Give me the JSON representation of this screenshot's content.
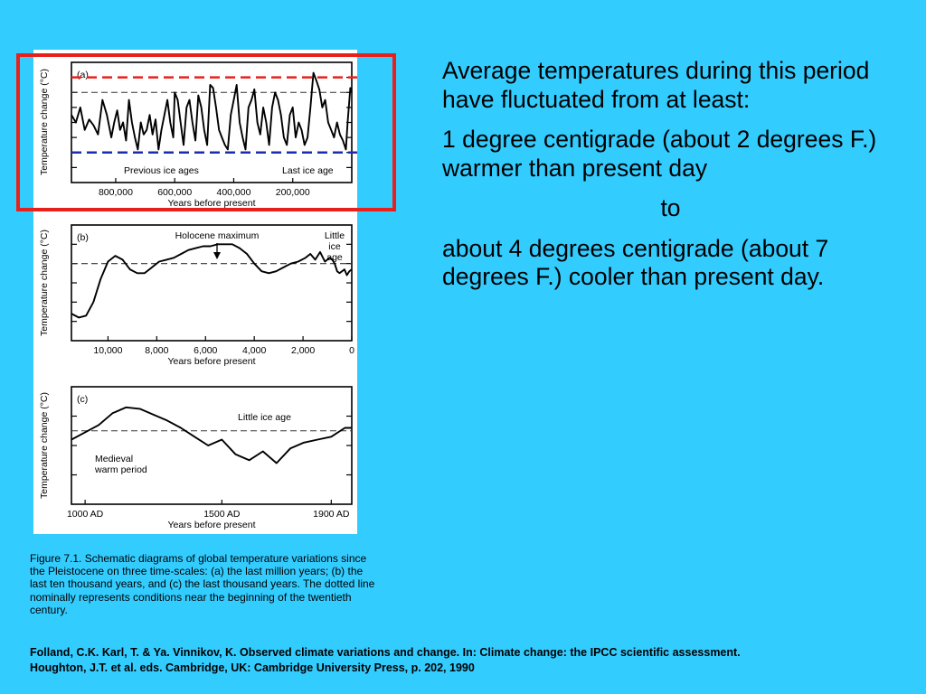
{
  "bullets": {
    "intro": "Average temperatures during this period have fluctuated from at least:",
    "warmer": "1 degree centigrade (about 2 degrees F.) warmer than present day",
    "to": "to",
    "cooler": "about 4 degrees centigrade (about 7 degrees F.) cooler than present day."
  },
  "caption": "Figure 7.1. Schematic diagrams of global temperature variations since the Pleistocene on three time-scales: (a) the last million years; (b) the last ten thousand years, and (c) the last thousand years. The dotted line nominally represents conditions near the beginning of the twentieth century.",
  "citation": {
    "line1": "Folland, C.K. Karl, T. & Ya. Vinnikov, K. Observed climate variations and change. In: Climate change: the IPCC scientific assessment.",
    "line2": "Houghton, J.T. et al. eds. Cambridge, UK: Cambridge University Press, p. 202, 1990"
  },
  "colors": {
    "background": "#33ccff",
    "highlight_box": "#e8201c",
    "warm_limit_line": "#e8201c",
    "cold_limit_line": "#1a2db0"
  },
  "chart_data": [
    {
      "type": "line",
      "panel_label": "(a)",
      "ylabel": "Temperature change (°C)",
      "xlabel": "Years before present",
      "x_reversed": true,
      "xlim": [
        950000,
        0
      ],
      "ylim": [
        -6,
        2
      ],
      "xticks": [
        800000,
        600000,
        400000,
        200000
      ],
      "xtick_labels": [
        "800,000",
        "600,000",
        "400,000",
        "200,000"
      ],
      "reference_line": 0,
      "warm_limit": 1,
      "cold_limit": -4,
      "annotations": {
        "previous": "Previous ice ages",
        "last": "Last ice age"
      },
      "series": [
        {
          "x": [
            950000,
            935000,
            920000,
            905000,
            890000,
            875000,
            860000,
            845000,
            830000,
            815000,
            805000,
            795000,
            785000,
            775000,
            765000,
            755000,
            745000,
            735000,
            725000,
            715000,
            705000,
            695000,
            685000,
            675000,
            665000,
            655000,
            645000,
            635000,
            625000,
            615000,
            605000,
            600000,
            590000,
            580000,
            570000,
            560000,
            550000,
            540000,
            530000,
            520000,
            510000,
            500000,
            490000,
            480000,
            470000,
            460000,
            450000,
            440000,
            430000,
            420000,
            410000,
            400000,
            390000,
            380000,
            370000,
            360000,
            350000,
            340000,
            330000,
            320000,
            310000,
            300000,
            290000,
            280000,
            270000,
            260000,
            250000,
            240000,
            230000,
            220000,
            210000,
            200000,
            190000,
            180000,
            170000,
            160000,
            150000,
            140000,
            130000,
            120000,
            110000,
            100000,
            90000,
            80000,
            70000,
            60000,
            50000,
            40000,
            30000,
            20000,
            14000,
            10000,
            5000,
            0
          ],
          "y": [
            -1.5,
            -2.0,
            -1.0,
            -2.5,
            -1.8,
            -2.2,
            -2.8,
            -0.5,
            -1.5,
            -3.0,
            -2.0,
            -1.2,
            -2.5,
            -2.0,
            -3.2,
            -0.5,
            -2.0,
            -3.0,
            -3.8,
            -2.0,
            -2.8,
            -2.5,
            -1.5,
            -2.8,
            -1.8,
            -3.8,
            -2.5,
            -1.5,
            -0.5,
            -2.0,
            -3.0,
            0.0,
            -0.5,
            -2.0,
            -3.5,
            -1.0,
            -0.5,
            -2.0,
            -3.2,
            -0.2,
            -1.0,
            -2.5,
            -3.5,
            0.5,
            0.3,
            -1.0,
            -2.5,
            -3.0,
            -3.5,
            -3.8,
            -1.5,
            -0.5,
            0.5,
            -2.0,
            -3.0,
            -3.8,
            -1.0,
            -0.5,
            0.2,
            -2.0,
            -2.8,
            -1.0,
            -2.0,
            -3.5,
            -1.0,
            0.0,
            -0.5,
            -1.5,
            -3.0,
            -3.5,
            -1.5,
            -1.0,
            -3.0,
            -2.0,
            -2.5,
            -3.5,
            -3.0,
            -1.0,
            1.3,
            0.8,
            0.2,
            -1.0,
            -0.5,
            -2.0,
            -2.5,
            -3.0,
            -2.0,
            -2.8,
            -3.2,
            -3.8,
            -2.0,
            -1.0,
            0.3,
            0.0
          ]
        }
      ]
    },
    {
      "type": "line",
      "panel_label": "(b)",
      "ylabel": "Temperature change (°C)",
      "xlabel": "Years before present",
      "x_reversed": true,
      "xlim": [
        11500,
        0
      ],
      "ylim": [
        -4,
        2
      ],
      "xticks": [
        10000,
        8000,
        6000,
        4000,
        2000,
        0
      ],
      "xtick_labels": [
        "10,000",
        "8,000",
        "6,000",
        "4,000",
        "2,000",
        "0"
      ],
      "reference_line": 0,
      "annotations": {
        "peak": "Holocene maximum",
        "little_ice_age": [
          "Little",
          "ice",
          "age"
        ]
      },
      "series": [
        {
          "x": [
            11500,
            11200,
            10900,
            10600,
            10300,
            10000,
            9700,
            9400,
            9100,
            8800,
            8500,
            8200,
            7900,
            7600,
            7300,
            7000,
            6700,
            6400,
            6100,
            5800,
            5500,
            5200,
            4900,
            4600,
            4300,
            4000,
            3700,
            3400,
            3100,
            2800,
            2500,
            2200,
            1900,
            1700,
            1500,
            1300,
            1100,
            900,
            800,
            700,
            600,
            500,
            400,
            300,
            200,
            100,
            0
          ],
          "y": [
            -2.6,
            -2.8,
            -2.7,
            -2.0,
            -0.8,
            0.1,
            0.4,
            0.2,
            -0.3,
            -0.5,
            -0.5,
            -0.2,
            0.1,
            0.2,
            0.3,
            0.5,
            0.7,
            0.8,
            0.9,
            0.9,
            1.0,
            1.0,
            1.0,
            0.8,
            0.5,
            0.0,
            -0.4,
            -0.5,
            -0.4,
            -0.2,
            0.0,
            0.1,
            0.3,
            0.5,
            0.2,
            0.6,
            0.1,
            0.3,
            0.2,
            0.0,
            -0.4,
            -0.5,
            -0.4,
            -0.3,
            -0.6,
            -0.4,
            -0.3
          ]
        }
      ]
    },
    {
      "type": "line",
      "panel_label": "(c)",
      "ylabel": "Temperature change (°C)",
      "xlabel": "Years before present",
      "x_reversed": false,
      "xlim": [
        950,
        1975
      ],
      "ylim": [
        -2.5,
        1.5
      ],
      "xticks": [
        1000,
        1500,
        1900
      ],
      "xtick_labels": [
        "1000 AD",
        "1500 AD",
        "1900 AD"
      ],
      "reference_line": 0,
      "annotations": {
        "cold": "Little ice age",
        "warm": [
          "Medieval",
          "warm period"
        ]
      },
      "series": [
        {
          "x": [
            950,
            1000,
            1050,
            1100,
            1150,
            1200,
            1250,
            1300,
            1350,
            1400,
            1450,
            1500,
            1550,
            1600,
            1650,
            1700,
            1750,
            1800,
            1850,
            1900,
            1950,
            1975
          ],
          "y": [
            -0.3,
            -0.05,
            0.2,
            0.6,
            0.8,
            0.75,
            0.55,
            0.35,
            0.1,
            -0.2,
            -0.5,
            -0.3,
            -0.8,
            -1.0,
            -0.7,
            -1.1,
            -0.6,
            -0.4,
            -0.3,
            -0.2,
            0.1,
            0.1
          ]
        }
      ]
    }
  ]
}
